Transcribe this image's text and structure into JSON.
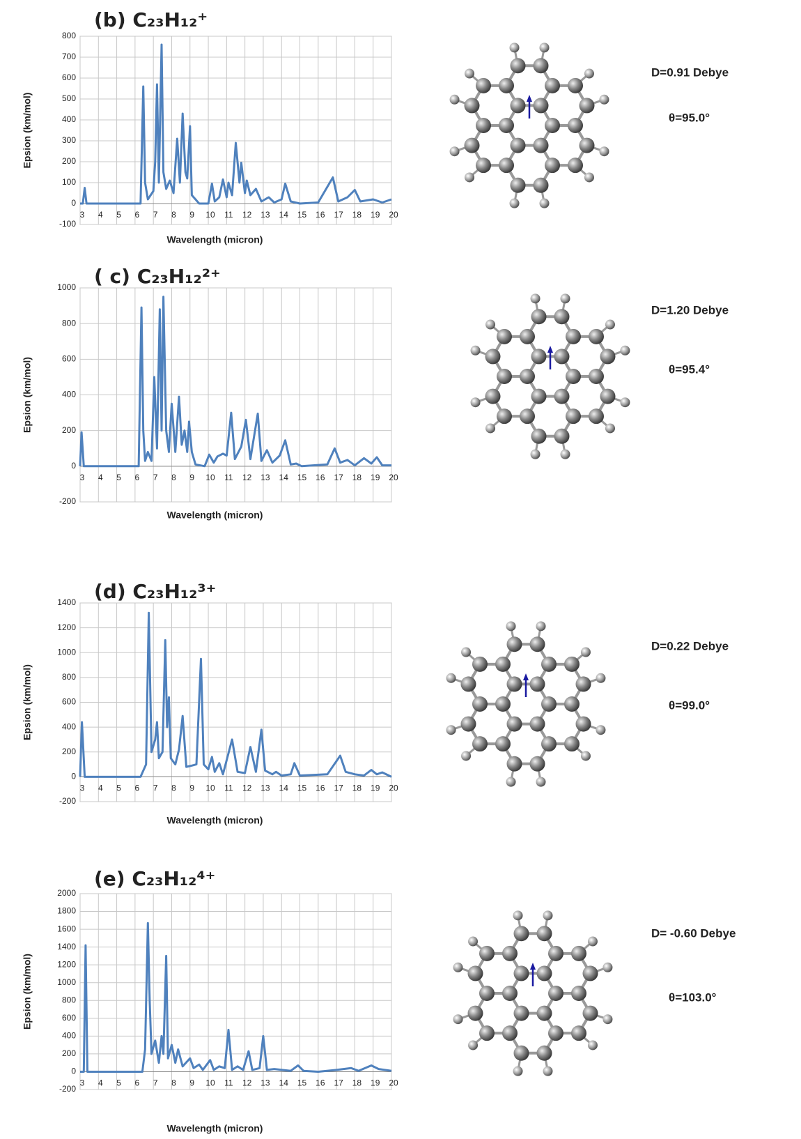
{
  "chart_data": [
    {
      "type": "line",
      "title": "(b) C₂₃H₁₂⁺",
      "xlabel": "Wavelength (micron)",
      "ylabel": "Epsion (km/mol)",
      "dipole": "D=0.91 Debye",
      "angle": "θ=95.0°",
      "color": "#4f81bd",
      "grid": true,
      "xlim": [
        3,
        20
      ],
      "xticks": [
        3,
        4,
        5,
        6,
        7,
        8,
        9,
        10,
        11,
        12,
        13,
        14,
        15,
        16,
        17,
        18,
        19,
        20
      ],
      "ylim": [
        -100,
        800
      ],
      "yticks": [
        -100,
        0,
        100,
        200,
        300,
        400,
        500,
        600,
        700,
        800
      ],
      "x": [
        3,
        3.15,
        3.25,
        3.35,
        6.3,
        6.45,
        6.55,
        6.7,
        7.0,
        7.1,
        7.2,
        7.3,
        7.45,
        7.55,
        7.7,
        7.9,
        8.1,
        8.3,
        8.45,
        8.6,
        8.75,
        8.85,
        9.0,
        9.1,
        9.3,
        9.5,
        10.0,
        10.2,
        10.35,
        10.6,
        10.8,
        11.0,
        11.1,
        11.3,
        11.5,
        11.7,
        11.8,
        12.0,
        12.1,
        12.3,
        12.6,
        12.9,
        13.3,
        13.6,
        14.0,
        14.2,
        14.5,
        15,
        16,
        16.8,
        17.1,
        17.6,
        18.0,
        18.3,
        19,
        19.5,
        20
      ],
      "values": [
        0,
        0,
        75,
        0,
        0,
        560,
        100,
        20,
        60,
        200,
        570,
        100,
        760,
        150,
        70,
        110,
        50,
        310,
        100,
        430,
        150,
        120,
        370,
        40,
        20,
        0,
        0,
        95,
        10,
        30,
        115,
        30,
        100,
        40,
        290,
        100,
        195,
        50,
        110,
        40,
        70,
        10,
        30,
        5,
        20,
        95,
        10,
        0,
        5,
        125,
        10,
        30,
        65,
        10,
        20,
        5,
        20
      ]
    },
    {
      "type": "line",
      "title": "( c) C₂₃H₁₂²⁺",
      "xlabel": "Wavelength (micron)",
      "ylabel": "Epsion (km/mol)",
      "dipole": "D=1.20 Debye",
      "angle": "θ=95.4°",
      "color": "#4f81bd",
      "grid": true,
      "xlim": [
        3,
        20
      ],
      "xticks": [
        3,
        4,
        5,
        6,
        7,
        8,
        9,
        10,
        11,
        12,
        13,
        14,
        15,
        16,
        17,
        18,
        19,
        20
      ],
      "ylim": [
        -200,
        1000
      ],
      "yticks": [
        -200,
        0,
        200,
        400,
        600,
        800,
        1000
      ],
      "x": [
        3,
        3.08,
        3.2,
        6.2,
        6.35,
        6.45,
        6.55,
        6.7,
        6.9,
        7.05,
        7.2,
        7.35,
        7.45,
        7.55,
        7.7,
        7.85,
        8.0,
        8.2,
        8.4,
        8.55,
        8.7,
        8.85,
        8.95,
        9.1,
        9.3,
        9.8,
        10.05,
        10.3,
        10.5,
        10.8,
        11.0,
        11.25,
        11.45,
        11.8,
        12.05,
        12.3,
        12.7,
        12.9,
        13.2,
        13.5,
        13.9,
        14.2,
        14.5,
        14.8,
        15.1,
        16.5,
        16.9,
        17.2,
        17.6,
        18.0,
        18.5,
        18.9,
        19.2,
        19.5,
        20
      ],
      "values": [
        0,
        190,
        0,
        0,
        890,
        200,
        30,
        80,
        30,
        500,
        100,
        880,
        200,
        950,
        200,
        80,
        350,
        80,
        390,
        120,
        200,
        80,
        250,
        80,
        10,
        0,
        65,
        20,
        55,
        70,
        60,
        300,
        40,
        110,
        260,
        40,
        295,
        30,
        90,
        20,
        60,
        145,
        10,
        15,
        0,
        10,
        100,
        20,
        35,
        5,
        45,
        15,
        50,
        5,
        5
      ]
    },
    {
      "type": "line",
      "title": "(d) C₂₃H₁₂³⁺",
      "xlabel": "Wavelength (micron)",
      "ylabel": "Epsion (km/mol)",
      "dipole": "D=0.22 Debye",
      "angle": "θ=99.0°",
      "color": "#4f81bd",
      "grid": true,
      "xlim": [
        3,
        20
      ],
      "xticks": [
        3,
        4,
        5,
        6,
        7,
        8,
        9,
        10,
        11,
        12,
        13,
        14,
        15,
        16,
        17,
        18,
        19,
        20
      ],
      "ylim": [
        -200,
        1400
      ],
      "yticks": [
        -200,
        0,
        200,
        400,
        600,
        800,
        1000,
        1200,
        1400
      ],
      "x": [
        3,
        3.1,
        3.25,
        6.3,
        6.6,
        6.75,
        6.9,
        7.1,
        7.2,
        7.3,
        7.5,
        7.65,
        7.75,
        7.85,
        7.95,
        8.2,
        8.4,
        8.6,
        8.8,
        9.1,
        9.35,
        9.6,
        9.75,
        10.0,
        10.2,
        10.35,
        10.6,
        10.8,
        11.3,
        11.6,
        12.0,
        12.3,
        12.6,
        12.9,
        13.1,
        13.5,
        13.7,
        14.0,
        14.5,
        14.7,
        15.0,
        16.5,
        17.2,
        17.5,
        18.0,
        18.5,
        18.9,
        19.2,
        19.5,
        20
      ],
      "values": [
        0,
        440,
        0,
        0,
        100,
        1320,
        200,
        300,
        440,
        150,
        200,
        1100,
        400,
        640,
        150,
        100,
        220,
        490,
        80,
        90,
        100,
        950,
        100,
        60,
        160,
        40,
        110,
        20,
        300,
        40,
        30,
        240,
        40,
        380,
        50,
        20,
        40,
        10,
        20,
        110,
        10,
        20,
        170,
        40,
        20,
        10,
        55,
        20,
        35,
        0
      ]
    },
    {
      "type": "line",
      "title": "(e) C₂₃H₁₂⁴⁺",
      "xlabel": "Wavelength (micron)",
      "ylabel": "Epsion (km/mol)",
      "dipole": "D= -0.60 Debye",
      "angle": "θ=103.0°",
      "color": "#4f81bd",
      "grid": true,
      "xlim": [
        3,
        20
      ],
      "xticks": [
        3,
        4,
        5,
        6,
        7,
        8,
        9,
        10,
        11,
        12,
        13,
        14,
        15,
        16,
        17,
        18,
        19,
        20
      ],
      "ylim": [
        -200,
        2000
      ],
      "yticks": [
        -200,
        0,
        200,
        400,
        600,
        800,
        1000,
        1200,
        1400,
        1600,
        1800,
        2000
      ],
      "x": [
        3,
        3.2,
        3.3,
        3.4,
        6.4,
        6.55,
        6.7,
        6.8,
        6.9,
        7.1,
        7.3,
        7.45,
        7.55,
        7.7,
        7.8,
        8.0,
        8.2,
        8.35,
        8.6,
        9.0,
        9.2,
        9.5,
        9.7,
        10.1,
        10.3,
        10.6,
        10.9,
        11.1,
        11.3,
        11.6,
        11.9,
        12.2,
        12.4,
        12.8,
        13.0,
        13.2,
        13.6,
        14.5,
        14.9,
        15.2,
        16,
        17,
        17.8,
        18.2,
        18.9,
        19.3,
        20
      ],
      "values": [
        0,
        0,
        1420,
        0,
        0,
        250,
        1670,
        800,
        200,
        350,
        100,
        400,
        200,
        1300,
        150,
        300,
        100,
        250,
        60,
        150,
        40,
        80,
        20,
        130,
        20,
        60,
        40,
        470,
        20,
        60,
        20,
        230,
        20,
        40,
        400,
        20,
        30,
        10,
        70,
        10,
        0,
        20,
        40,
        10,
        70,
        30,
        10
      ]
    }
  ]
}
